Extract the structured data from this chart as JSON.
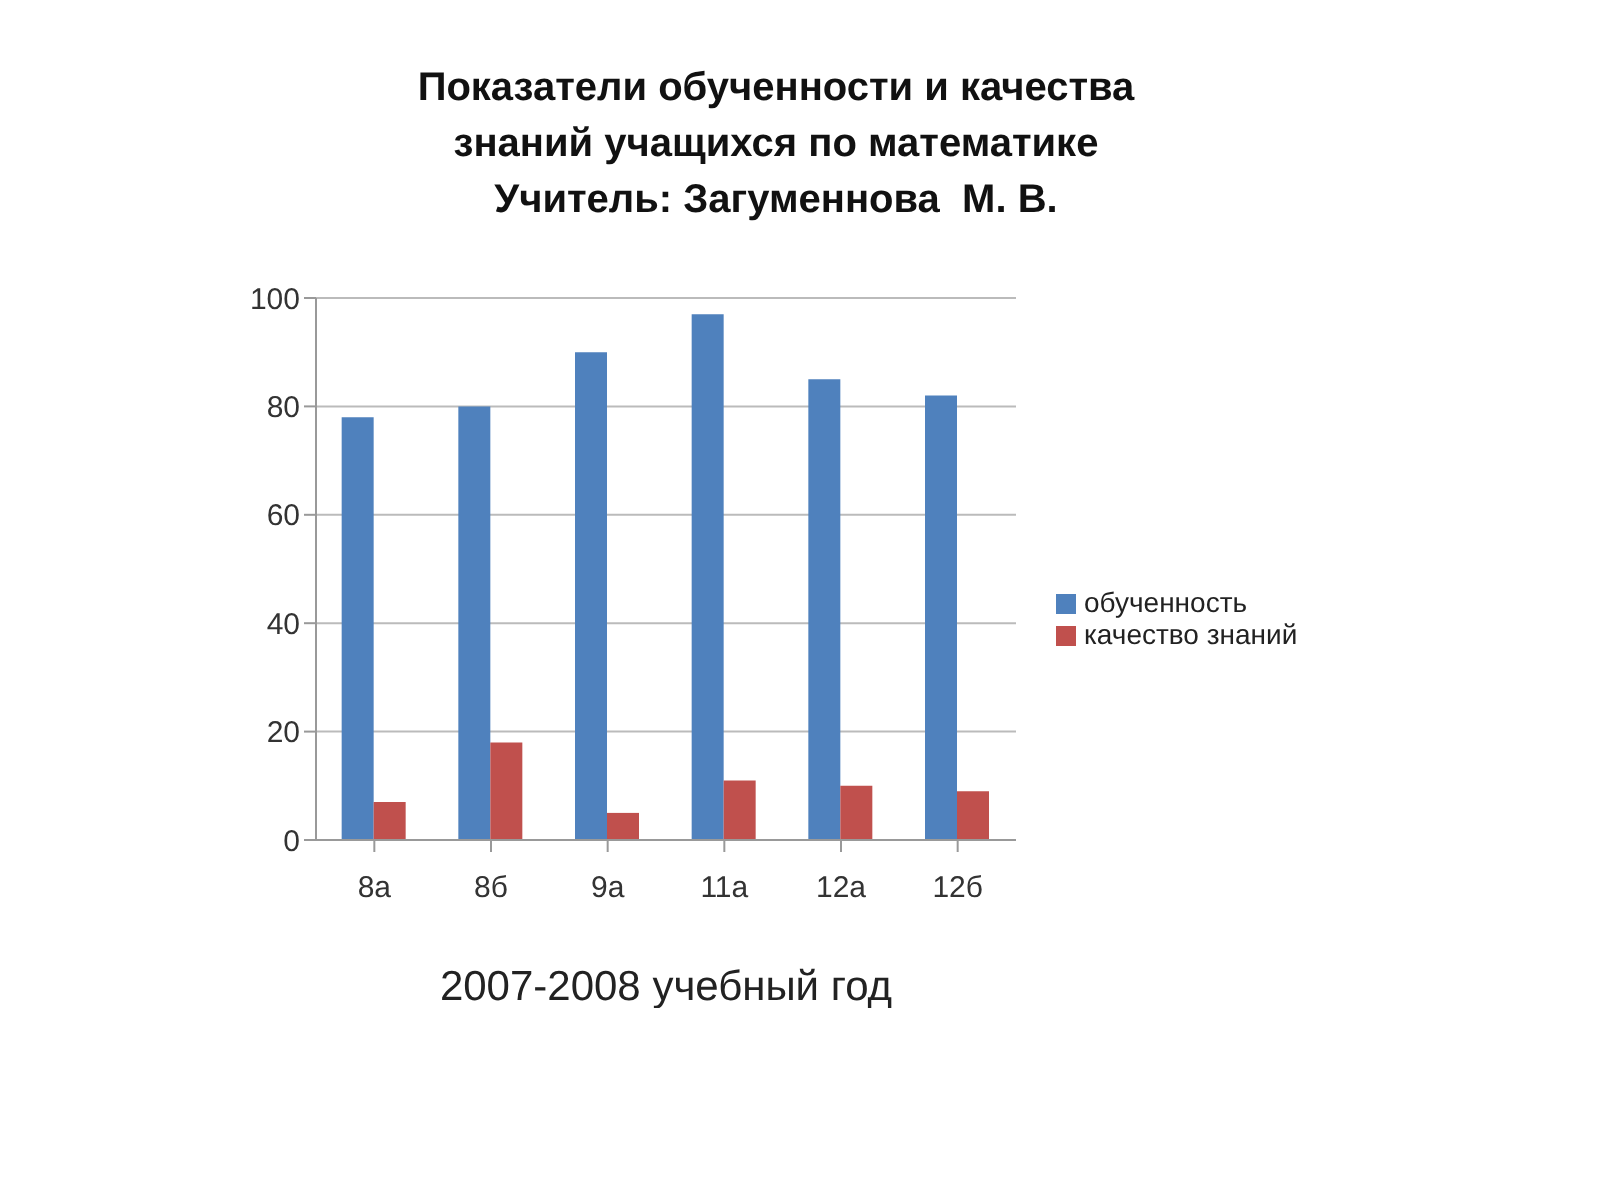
{
  "chart_data": {
    "type": "bar",
    "title": "Показатели обученности и качества\nзнаний учащихся по математике\nУчитель: Загуменнова  М. В.",
    "xlabel": "2007-2008 учебный год",
    "categories": [
      "8а",
      "8б",
      "9а",
      "11а",
      "12а",
      "12б"
    ],
    "series": [
      {
        "name": "обученность",
        "color": "#4f81bd",
        "values": [
          78,
          80,
          90,
          97,
          85,
          82
        ]
      },
      {
        "name": "качество знаний",
        "color": "#c0504d",
        "values": [
          7,
          18,
          5,
          11,
          10,
          9
        ]
      }
    ],
    "ylim": [
      0,
      100
    ],
    "yticks": [
      0,
      20,
      40,
      60,
      80,
      100
    ],
    "grid": "y",
    "legend": "right"
  }
}
